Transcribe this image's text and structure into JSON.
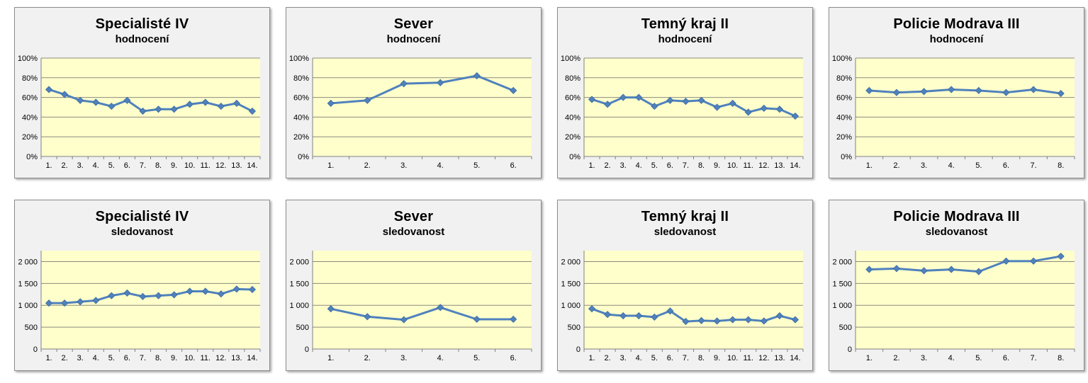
{
  "style": {
    "accent_line": "#4F81BD",
    "marker_edge": "#3A6A9E",
    "plot_background": "#FFFFCC",
    "card_background": "#F1F1F1",
    "card_border": "#8C8C8C",
    "gridline": "#8B8B80",
    "axis": "#808080",
    "text": "#000000"
  },
  "chart_data": [
    {
      "type": "line",
      "title": "Specialisté IV",
      "subtitle": "hodnocení",
      "categories": [
        "1.",
        "2.",
        "3.",
        "4.",
        "5.",
        "6.",
        "7.",
        "8.",
        "9.",
        "10.",
        "11.",
        "12.",
        "13.",
        "14."
      ],
      "values": [
        68,
        63,
        57,
        55,
        51,
        57,
        46,
        48,
        48,
        53,
        55,
        51,
        54,
        46
      ],
      "ymax": 100,
      "ytick_values": [
        0,
        20,
        40,
        60,
        80,
        100
      ],
      "ytick_labels": [
        "0%",
        "20%",
        "40%",
        "60%",
        "80%",
        "100%"
      ],
      "grid": "horizontal",
      "legend": "none"
    },
    {
      "type": "line",
      "title": "Sever",
      "subtitle": "hodnocení",
      "categories": [
        "1.",
        "2.",
        "3.",
        "4.",
        "5.",
        "6."
      ],
      "values": [
        54,
        57,
        74,
        75,
        82,
        67
      ],
      "ymax": 100,
      "ytick_values": [
        0,
        20,
        40,
        60,
        80,
        100
      ],
      "ytick_labels": [
        "0%",
        "20%",
        "40%",
        "60%",
        "80%",
        "100%"
      ],
      "grid": "horizontal",
      "legend": "none"
    },
    {
      "type": "line",
      "title": "Temný kraj II",
      "subtitle": "hodnocení",
      "categories": [
        "1.",
        "2.",
        "3.",
        "4.",
        "5.",
        "6.",
        "7.",
        "8.",
        "9.",
        "10.",
        "11.",
        "12.",
        "13.",
        "14."
      ],
      "values": [
        58,
        53,
        60,
        60,
        51,
        57,
        56,
        57,
        50,
        54,
        45,
        49,
        48,
        41
      ],
      "ymax": 100,
      "ytick_values": [
        0,
        20,
        40,
        60,
        80,
        100
      ],
      "ytick_labels": [
        "0%",
        "20%",
        "40%",
        "60%",
        "80%",
        "100%"
      ],
      "grid": "horizontal",
      "legend": "none"
    },
    {
      "type": "line",
      "title": "Policie Modrava III",
      "subtitle": "hodnocení",
      "categories": [
        "1.",
        "2.",
        "3.",
        "4.",
        "5.",
        "6.",
        "7.",
        "8."
      ],
      "values": [
        67,
        65,
        66,
        68,
        67,
        65,
        68,
        64
      ],
      "ymax": 100,
      "ytick_values": [
        0,
        20,
        40,
        60,
        80,
        100
      ],
      "ytick_labels": [
        "0%",
        "20%",
        "40%",
        "60%",
        "80%",
        "100%"
      ],
      "grid": "horizontal",
      "legend": "none"
    },
    {
      "type": "line",
      "title": "Specialisté IV",
      "subtitle": "sledovanost",
      "categories": [
        "1.",
        "2.",
        "3.",
        "4.",
        "5.",
        "6.",
        "7.",
        "8.",
        "9.",
        "10.",
        "11.",
        "12.",
        "13.",
        "14."
      ],
      "values": [
        1050,
        1050,
        1080,
        1110,
        1220,
        1280,
        1200,
        1220,
        1240,
        1320,
        1320,
        1260,
        1370,
        1360
      ],
      "ymax": 2250,
      "ytick_values": [
        0,
        500,
        1000,
        1500,
        2000
      ],
      "ytick_labels": [
        "0",
        "500",
        "1 000",
        "1 500",
        "2 000"
      ],
      "grid": "horizontal",
      "legend": "none"
    },
    {
      "type": "line",
      "title": "Sever",
      "subtitle": "sledovanost",
      "categories": [
        "1.",
        "2.",
        "3.",
        "4.",
        "5.",
        "6."
      ],
      "values": [
        920,
        740,
        670,
        950,
        680,
        680
      ],
      "ymax": 2250,
      "ytick_values": [
        0,
        500,
        1000,
        1500,
        2000
      ],
      "ytick_labels": [
        "0",
        "500",
        "1 000",
        "1 500",
        "2 000"
      ],
      "grid": "horizontal",
      "legend": "none"
    },
    {
      "type": "line",
      "title": "Temný kraj II",
      "subtitle": "sledovanost",
      "categories": [
        "1.",
        "2.",
        "3.",
        "4.",
        "5.",
        "6.",
        "7.",
        "8.",
        "9.",
        "10.",
        "11.",
        "12.",
        "13.",
        "14."
      ],
      "values": [
        920,
        790,
        760,
        760,
        730,
        870,
        630,
        650,
        640,
        670,
        670,
        640,
        760,
        670
      ],
      "ymax": 2250,
      "ytick_values": [
        0,
        500,
        1000,
        1500,
        2000
      ],
      "ytick_labels": [
        "0",
        "500",
        "1 000",
        "1 500",
        "2 000"
      ],
      "grid": "horizontal",
      "legend": "none"
    },
    {
      "type": "line",
      "title": "Policie Modrava III",
      "subtitle": "sledovanost",
      "categories": [
        "1.",
        "2.",
        "3.",
        "4.",
        "5.",
        "6.",
        "7.",
        "8."
      ],
      "values": [
        1820,
        1840,
        1790,
        1820,
        1770,
        2010,
        2010,
        2120
      ],
      "ymax": 2250,
      "ytick_values": [
        0,
        500,
        1000,
        1500,
        2000
      ],
      "ytick_labels": [
        "0",
        "500",
        "1 000",
        "1 500",
        "2 000"
      ],
      "grid": "horizontal",
      "legend": "none"
    }
  ]
}
